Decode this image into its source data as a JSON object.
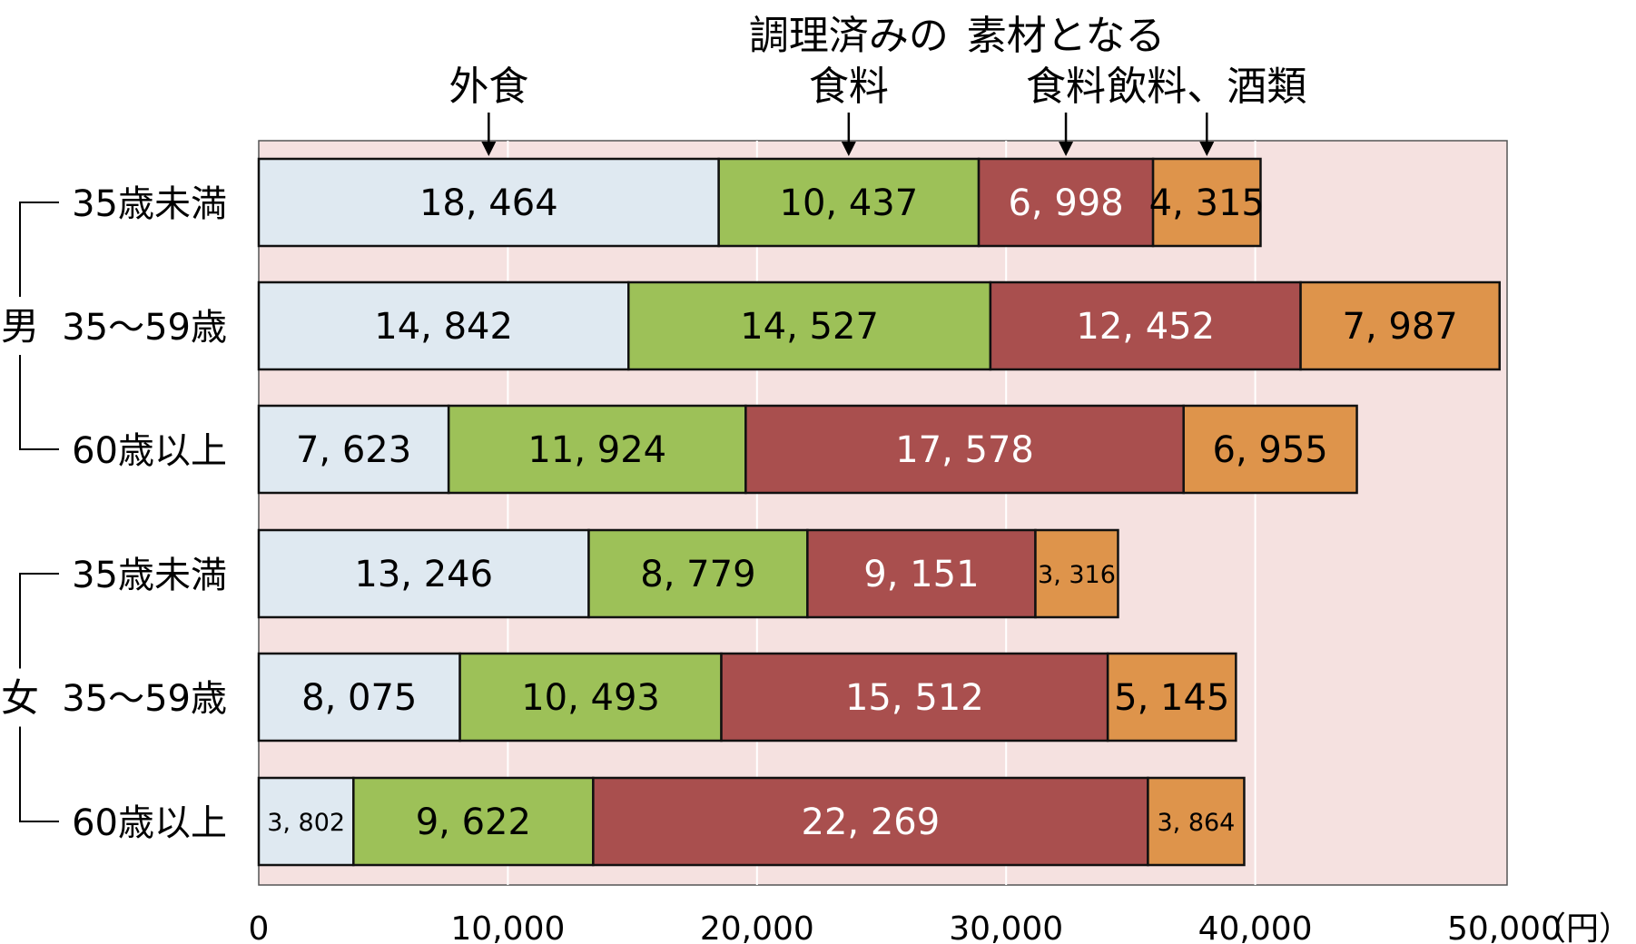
{
  "chart_data": {
    "type": "bar",
    "orientation": "horizontal",
    "stacked": true,
    "unit": "（円）",
    "xlim": [
      0,
      50000
    ],
    "xticks": [
      "0",
      "10,000",
      "20,000",
      "30,000",
      "40,000",
      "50,000"
    ],
    "column_headers": [
      {
        "lines": [
          "外食"
        ]
      },
      {
        "lines": [
          "調理済みの",
          "食料"
        ]
      },
      {
        "lines": [
          "素材となる",
          "食料"
        ]
      },
      {
        "lines": [
          "飲料、酒類"
        ]
      }
    ],
    "series": [
      {
        "name": "外食",
        "color": "#dfe9f1",
        "text_color": "#000000"
      },
      {
        "name": "調理済みの食料",
        "color": "#9dc158",
        "text_color": "#000000"
      },
      {
        "name": "素材となる食料",
        "color": "#a94f4e",
        "text_color": "#ffffff"
      },
      {
        "name": "飲料、酒類",
        "color": "#de944b",
        "text_color": "#000000"
      }
    ],
    "groups": [
      {
        "name": "男",
        "rows": [
          0,
          1,
          2
        ]
      },
      {
        "name": "女",
        "rows": [
          3,
          4,
          5
        ]
      }
    ],
    "rows": [
      {
        "label": "35歳未満",
        "values": [
          18464,
          10437,
          6998,
          4315
        ],
        "labels": [
          "18, 464",
          "10, 437",
          "6, 998",
          "4, 315"
        ]
      },
      {
        "label": "35～59歳",
        "values": [
          14842,
          14527,
          12452,
          7987
        ],
        "labels": [
          "14, 842",
          "14, 527",
          "12, 452",
          "7, 987"
        ]
      },
      {
        "label": "60歳以上",
        "values": [
          7623,
          11924,
          17578,
          6955
        ],
        "labels": [
          "7, 623",
          "11, 924",
          "17, 578",
          "6, 955"
        ]
      },
      {
        "label": "35歳未満",
        "values": [
          13246,
          8779,
          9151,
          3316
        ],
        "labels": [
          "13, 246",
          "8, 779",
          "9, 151",
          "3, 316"
        ]
      },
      {
        "label": "35～59歳",
        "values": [
          8075,
          10493,
          15512,
          5145
        ],
        "labels": [
          "8, 075",
          "10, 493",
          "15, 512",
          "5, 145"
        ]
      },
      {
        "label": "60歳以上",
        "values": [
          3802,
          9622,
          22269,
          3864
        ],
        "labels": [
          "3, 802",
          "9, 622",
          "22, 269",
          "3, 864"
        ]
      }
    ],
    "colors": {
      "plot_background": "#f5e1e0",
      "grid": "#ffffff",
      "bar_stroke": "#111111"
    }
  }
}
